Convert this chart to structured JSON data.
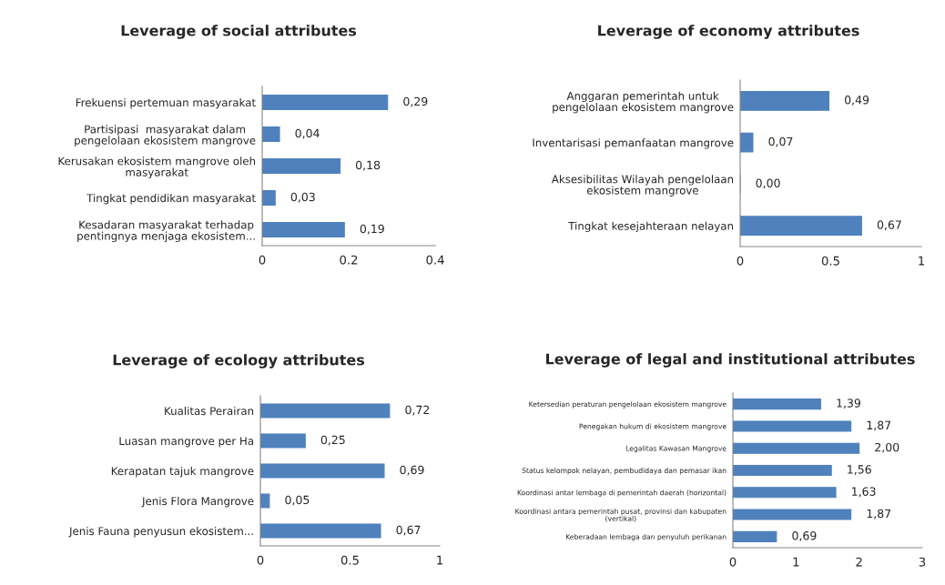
{
  "chart_data": [
    {
      "type": "bar",
      "orientation": "horizontal",
      "title": "Leverage of social attributes",
      "categories": [
        "Frekuensi pertemuan masyarakat",
        "Partisipasi  masyarakat dalam\npengelolaan ekosistem mangrove",
        "Kerusakan ekosistem mangrove oleh\nmasyarakat",
        "Tingkat pendidikan masyarakat",
        "Kesadaran masyarakat terhadap\npentingnya menjaga ekosistem..."
      ],
      "values": [
        0.29,
        0.04,
        0.18,
        0.03,
        0.19
      ],
      "value_labels": [
        "0,29",
        "0,04",
        "0,18",
        "0,03",
        "0,19"
      ],
      "color": "#4f81bd",
      "xlim": [
        0,
        0.4
      ],
      "xticks": [
        0,
        0.2,
        0.4
      ],
      "grid": false,
      "legend": false
    },
    {
      "type": "bar",
      "orientation": "horizontal",
      "title": "Leverage of economy attributes",
      "categories": [
        "Anggaran pemerintah untuk\npengelolaan ekosistem mangrove",
        "Inventarisasi pemanfaatan mangrove",
        "Aksesibilitas Wilayah pengelolaan\nekosistem mangrove",
        "Tingkat kesejahteraan nelayan"
      ],
      "values": [
        0.49,
        0.07,
        0.0,
        0.67
      ],
      "value_labels": [
        "0,49",
        "0,07",
        "0,00",
        "0,67"
      ],
      "color": "#4f81bd",
      "xlim": [
        0,
        1
      ],
      "xticks": [
        0,
        0.5,
        1
      ],
      "grid": false,
      "legend": false
    },
    {
      "type": "bar",
      "orientation": "horizontal",
      "title": "Leverage of ecology attributes",
      "categories": [
        "Kualitas Perairan",
        "Luasan mangrove per Ha",
        "Kerapatan tajuk mangrove",
        "Jenis Flora Mangrove",
        "Jenis Fauna penyusun ekosistem..."
      ],
      "values": [
        0.72,
        0.25,
        0.69,
        0.05,
        0.67
      ],
      "value_labels": [
        "0,72",
        "0,25",
        "0,69",
        "0,05",
        "0,67"
      ],
      "color": "#4f81bd",
      "xlim": [
        0,
        1
      ],
      "xticks": [
        0,
        0.5,
        1
      ],
      "grid": false,
      "legend": false
    },
    {
      "type": "bar",
      "orientation": "horizontal",
      "title": "Leverage of legal and institutional attributes",
      "categories": [
        "Ketersedian peraturan pengelolaan ekosistem mangrove",
        "Penegakan hukum di ekosistem mangrove",
        "Legalitas Kawasan Mangrove",
        "Status kelompok nelayan, pembudidaya dan pemasar ikan",
        "Koordinasi antar lembaga di pemerintah daerah (horizontal)",
        "Koordinasi antara pemerintah pusat, provinsi dan kabupaten\n(vertikal)",
        "Keberadaan lembaga dan penyuluh perikanan"
      ],
      "values": [
        1.39,
        1.87,
        2.0,
        1.56,
        1.63,
        1.87,
        0.69
      ],
      "value_labels": [
        "1,39",
        "1,87",
        "2,00",
        "1,56",
        "1,63",
        "1,87",
        "0,69"
      ],
      "color": "#4f81bd",
      "xlim": [
        0,
        3
      ],
      "xticks": [
        0,
        1,
        2,
        3
      ],
      "grid": false,
      "legend": false
    }
  ]
}
